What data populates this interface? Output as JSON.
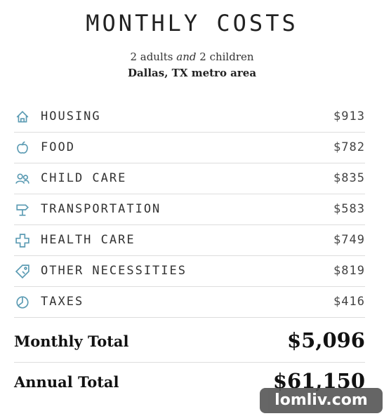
{
  "header": {
    "title": "MONTHLY COSTS",
    "subtitle": {
      "before": "2 adults",
      "emphasis": "and",
      "after": "2 children"
    },
    "location": "Dallas, TX metro area"
  },
  "items": [
    {
      "label": "HOUSING",
      "amount": "$913"
    },
    {
      "label": "FOOD",
      "amount": "$782"
    },
    {
      "label": "CHILD CARE",
      "amount": "$835"
    },
    {
      "label": "TRANSPORTATION",
      "amount": "$583"
    },
    {
      "label": "HEALTH CARE",
      "amount": "$749"
    },
    {
      "label": "OTHER NECESSITIES",
      "amount": "$819"
    },
    {
      "label": "TAXES",
      "amount": "$416"
    }
  ],
  "totals": [
    {
      "label": "Monthly Total",
      "amount": "$5,096"
    },
    {
      "label": "Annual Total",
      "amount": "$61,150"
    }
  ],
  "watermark": "lomliv.com"
}
